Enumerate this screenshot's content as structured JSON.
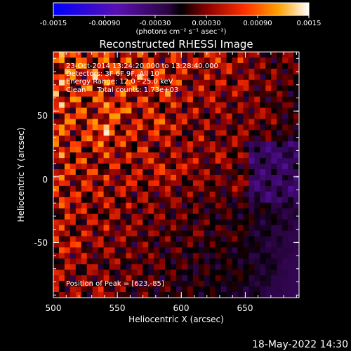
{
  "colorbar": {
    "tick_labels": [
      "-0.0015",
      "-0.00090",
      "-0.00030",
      "0.00030",
      "0.00090",
      "0.0015"
    ],
    "units_label": "(photons cm⁻² s⁻¹ asec⁻²)",
    "range": [
      -0.0015,
      0.0015
    ]
  },
  "chart_data": {
    "type": "heatmap",
    "title": "Reconstructed RHESSI Image",
    "xlabel": "Heliocentric X (arcsec)",
    "ylabel": "Heliocentric Y (arcsec)",
    "xlim": [
      500,
      692
    ],
    "ylim": [
      -92,
      95
    ],
    "xticks": [
      500,
      550,
      600,
      650
    ],
    "yticks": [
      50,
      0,
      -50
    ],
    "annotations": [
      "23-Oct-2014 13:24:20.000 to 13:28:40.000",
      "Detectors: 3F 6F 9F, All 10",
      "Energy Range: 12.0 - 25.0 keV",
      "Clean     Total counts: 1.73e+03"
    ],
    "peak_label": "Position of Peak = [623,-85]",
    "peak": [
      623,
      -85
    ],
    "grid": false,
    "colormap": "blue-purple-red-yellow-white"
  },
  "footer": {
    "timestamp": "18-May-2022 14:30"
  }
}
